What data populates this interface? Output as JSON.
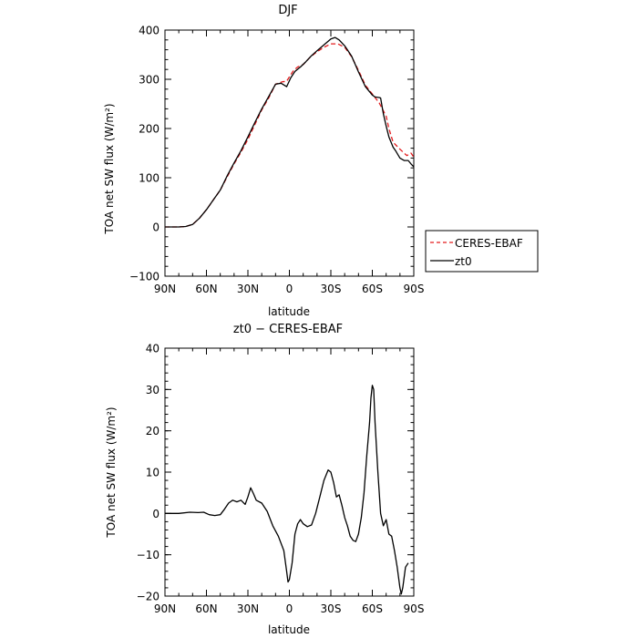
{
  "chart_data": [
    {
      "type": "line",
      "title": "DJF",
      "xlabel": "latitude",
      "ylabel": "TOA net SW flux (W/m²)",
      "xlim": [
        90,
        -90
      ],
      "ylim": [
        -100,
        400
      ],
      "xticks": [
        90,
        60,
        30,
        0,
        -30,
        -60,
        -90
      ],
      "xticklabels": [
        "90N",
        "60N",
        "30N",
        "0",
        "30S",
        "60S",
        "90S"
      ],
      "yticks": [
        -100,
        0,
        100,
        200,
        300,
        400
      ],
      "yticklabels": [
        "−100",
        "0",
        "100",
        "200",
        "300",
        "400"
      ],
      "legend": {
        "placement": "right-outside",
        "entries": [
          "CERES-EBAF",
          "zt0"
        ]
      },
      "grid": false,
      "series": [
        {
          "name": "CERES-EBAF",
          "color": "#e31a1c",
          "dash": "dashed",
          "points": [
            [
              90,
              0
            ],
            [
              80,
              0
            ],
            [
              75,
              1
            ],
            [
              70,
              5
            ],
            [
              65,
              18
            ],
            [
              60,
              35
            ],
            [
              55,
              55
            ],
            [
              50,
              75
            ],
            [
              45,
              102
            ],
            [
              40,
              128
            ],
            [
              35,
              152
            ],
            [
              30,
              178
            ],
            [
              25,
              208
            ],
            [
              20,
              238
            ],
            [
              15,
              262
            ],
            [
              10,
              290
            ],
            [
              5,
              295
            ],
            [
              2,
              296
            ],
            [
              0,
              305
            ],
            [
              -3,
              318
            ],
            [
              -6,
              325
            ],
            [
              -10,
              330
            ],
            [
              -15,
              345
            ],
            [
              -20,
              356
            ],
            [
              -25,
              365
            ],
            [
              -30,
              372
            ],
            [
              -35,
              372
            ],
            [
              -40,
              365
            ],
            [
              -45,
              346
            ],
            [
              -50,
              318
            ],
            [
              -55,
              288
            ],
            [
              -60,
              270
            ],
            [
              -65,
              252
            ],
            [
              -70,
              225
            ],
            [
              -72,
              200
            ],
            [
              -75,
              172
            ],
            [
              -80,
              158
            ],
            [
              -85,
              145
            ],
            [
              -88,
              150
            ],
            [
              -90,
              142
            ]
          ]
        },
        {
          "name": "zt0",
          "color": "#000000",
          "dash": "solid",
          "points": [
            [
              90,
              0
            ],
            [
              80,
              0
            ],
            [
              75,
              1
            ],
            [
              70,
              5
            ],
            [
              65,
              18
            ],
            [
              60,
              35
            ],
            [
              55,
              55
            ],
            [
              50,
              75
            ],
            [
              45,
              104
            ],
            [
              40,
              130
            ],
            [
              35,
              155
            ],
            [
              30,
              183
            ],
            [
              25,
              212
            ],
            [
              20,
              240
            ],
            [
              15,
              265
            ],
            [
              10,
              290
            ],
            [
              6,
              292
            ],
            [
              2,
              285
            ],
            [
              -1,
              303
            ],
            [
              -4,
              316
            ],
            [
              -8,
              325
            ],
            [
              -12,
              336
            ],
            [
              -16,
              348
            ],
            [
              -20,
              358
            ],
            [
              -25,
              370
            ],
            [
              -30,
              382
            ],
            [
              -33,
              385
            ],
            [
              -36,
              380
            ],
            [
              -40,
              368
            ],
            [
              -45,
              347
            ],
            [
              -50,
              315
            ],
            [
              -55,
              285
            ],
            [
              -60,
              268
            ],
            [
              -62,
              264
            ],
            [
              -65,
              263
            ],
            [
              -66,
              262
            ],
            [
              -68,
              230
            ],
            [
              -70,
              205
            ],
            [
              -72,
              183
            ],
            [
              -75,
              162
            ],
            [
              -77,
              154
            ],
            [
              -80,
              140
            ],
            [
              -83,
              135
            ],
            [
              -86,
              135
            ],
            [
              -88,
              128
            ],
            [
              -90,
              122
            ]
          ]
        }
      ]
    },
    {
      "type": "line",
      "title": "zt0 − CERES-EBAF",
      "xlabel": "latitude",
      "ylabel": "TOA net SW flux (W/m²)",
      "xlim": [
        90,
        -90
      ],
      "ylim": [
        -20,
        40
      ],
      "xticks": [
        90,
        60,
        30,
        0,
        -30,
        -60,
        -90
      ],
      "xticklabels": [
        "90N",
        "60N",
        "30N",
        "0",
        "30S",
        "60S",
        "90S"
      ],
      "yticks": [
        -20,
        -10,
        0,
        10,
        20,
        30,
        40
      ],
      "yticklabels": [
        "−20",
        "−10",
        "0",
        "10",
        "20",
        "30",
        "40"
      ],
      "grid": false,
      "series": [
        {
          "color": "#000000",
          "dash": "solid",
          "points": [
            [
              90,
              0
            ],
            [
              80,
              0
            ],
            [
              72,
              0.3
            ],
            [
              66,
              0.2
            ],
            [
              62,
              0.3
            ],
            [
              58,
              -0.3
            ],
            [
              54,
              -0.5
            ],
            [
              50,
              -0.3
            ],
            [
              47,
              1
            ],
            [
              44,
              2.5
            ],
            [
              41,
              3.2
            ],
            [
              38,
              2.8
            ],
            [
              35,
              3.2
            ],
            [
              32,
              2.2
            ],
            [
              30,
              4
            ],
            [
              28,
              6.2
            ],
            [
              26,
              4.8
            ],
            [
              24,
              3.2
            ],
            [
              20,
              2.5
            ],
            [
              16,
              0.5
            ],
            [
              12,
              -3
            ],
            [
              8,
              -5.5
            ],
            [
              4,
              -9
            ],
            [
              2,
              -14
            ],
            [
              1,
              -16.6
            ],
            [
              0,
              -16
            ],
            [
              -2,
              -12
            ],
            [
              -4,
              -5
            ],
            [
              -6,
              -2.5
            ],
            [
              -8,
              -1.5
            ],
            [
              -10,
              -2.5
            ],
            [
              -13,
              -3.2
            ],
            [
              -16,
              -2.8
            ],
            [
              -19,
              0
            ],
            [
              -22,
              4
            ],
            [
              -25,
              8
            ],
            [
              -28,
              10.5
            ],
            [
              -30,
              10
            ],
            [
              -32,
              7.5
            ],
            [
              -34,
              4
            ],
            [
              -36,
              4.5
            ],
            [
              -38,
              2
            ],
            [
              -40,
              -1
            ],
            [
              -42,
              -3
            ],
            [
              -44,
              -5.5
            ],
            [
              -46,
              -6.5
            ],
            [
              -48,
              -6.8
            ],
            [
              -50,
              -5
            ],
            [
              -52,
              -1
            ],
            [
              -54,
              5
            ],
            [
              -56,
              14
            ],
            [
              -58,
              22
            ],
            [
              -59,
              28
            ],
            [
              -60,
              31
            ],
            [
              -61,
              30
            ],
            [
              -62,
              22
            ],
            [
              -64,
              10
            ],
            [
              -66,
              0
            ],
            [
              -68,
              -3
            ],
            [
              -70,
              -1.5
            ],
            [
              -72,
              -5
            ],
            [
              -74,
              -5.5
            ],
            [
              -76,
              -9
            ],
            [
              -78,
              -13
            ],
            [
              -80,
              -18
            ],
            [
              -81,
              -19.5
            ],
            [
              -82,
              -18
            ],
            [
              -84,
              -13
            ],
            [
              -86,
              -12
            ]
          ]
        }
      ]
    }
  ]
}
